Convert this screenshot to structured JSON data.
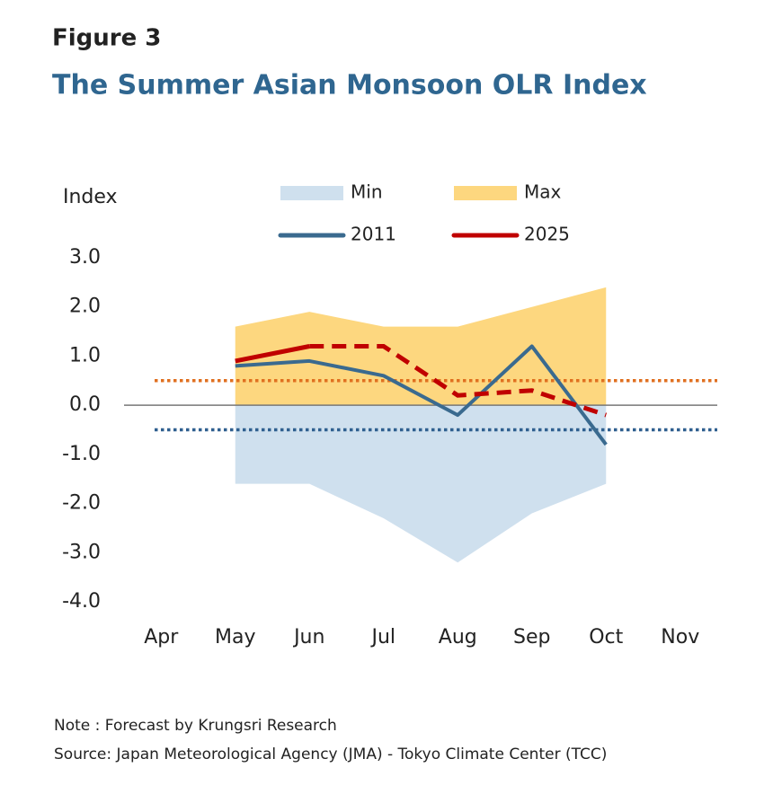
{
  "chart_data": {
    "type": "line",
    "title": "Figure 3",
    "subtitle": "The Summer Asian Monsoon OLR Index",
    "y_label": "Index",
    "categories": [
      "Apr",
      "May",
      "Jun",
      "Jul",
      "Aug",
      "Sep",
      "Oct",
      "Nov"
    ],
    "series": [
      {
        "name": "Min",
        "kind": "area",
        "color": "#cfe0ee",
        "values": [
          null,
          -1.6,
          -1.6,
          -2.3,
          -3.2,
          -2.2,
          -1.6,
          null
        ]
      },
      {
        "name": "Max",
        "kind": "area",
        "color": "#fdd77f",
        "values": [
          null,
          1.6,
          1.9,
          1.6,
          1.6,
          2.0,
          2.4,
          null
        ]
      },
      {
        "name": "2011",
        "kind": "line",
        "color": "#3a6a8f",
        "values": [
          null,
          0.8,
          0.9,
          0.6,
          -0.2,
          1.2,
          -0.8,
          null
        ]
      },
      {
        "name": "2025",
        "kind": "line",
        "color": "#c00000",
        "dash_from_index": 2,
        "values": [
          null,
          0.9,
          1.2,
          1.2,
          0.2,
          0.3,
          -0.2,
          null
        ]
      }
    ],
    "reference_lines": [
      {
        "value": 0.5,
        "color": "#e07020"
      },
      {
        "value": -0.5,
        "color": "#2f5f8f"
      }
    ],
    "ylim": [
      -4,
      3
    ],
    "yticks": [
      {
        "value": -4,
        "label": "-4.0"
      },
      {
        "value": -3,
        "label": "-3.0"
      },
      {
        "value": -2,
        "label": "-2.0"
      },
      {
        "value": -1,
        "label": "-1.0"
      },
      {
        "value": 0,
        "label": "0.0"
      },
      {
        "value": 1,
        "label": "1.0"
      },
      {
        "value": 2,
        "label": "2.0"
      },
      {
        "value": 3,
        "label": "3.0"
      }
    ],
    "note": "Note : Forecast by Krungsri Research",
    "source": "Source: Japan Meteorological Agency (JMA) - Tokyo Climate Center (TCC)"
  }
}
